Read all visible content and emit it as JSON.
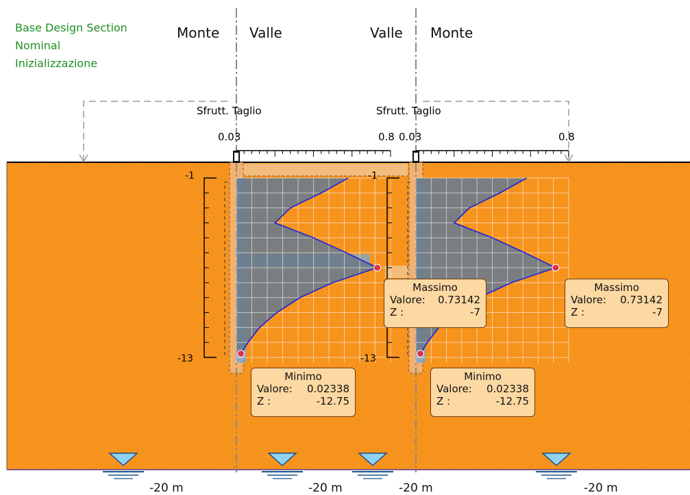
{
  "info": {
    "lines": [
      "Base Design Section",
      "Nominal",
      "Inizializzazione"
    ]
  },
  "left_wall": {
    "side_left": "Monte",
    "side_right": "Valle",
    "chart_title": "Sfrutt. Taglio",
    "scale_min": "0.03",
    "scale_max": "0.8",
    "depth_top": "-1",
    "depth_bottom": "-13",
    "max_box": {
      "title": "Massimo",
      "value_label": "Valore:",
      "value": "0.73142",
      "z_label": "Z :",
      "z": "-7"
    },
    "min_box": {
      "title": "Minimo",
      "value_label": "Valore:",
      "value": "0.02338",
      "z_label": "Z :",
      "z": "-12.75"
    }
  },
  "right_wall": {
    "side_left": "Valle",
    "side_right": "Monte",
    "chart_title": "Sfrutt. Taglio",
    "scale_min": "0.03",
    "scale_max": "0.8",
    "depth_top": "-1",
    "depth_bottom": "-13",
    "max_box": {
      "title": "Massimo",
      "value_label": "Valore:",
      "value": "0.73142",
      "z_label": "Z :",
      "z": "-7"
    },
    "min_box": {
      "title": "Minimo",
      "value_label": "Valore:",
      "value": "0.02338",
      "z_label": "Z :",
      "z": "-12.75"
    }
  },
  "water_tables": [
    "-20 m",
    "-20 m",
    "-20 m",
    "-20 m"
  ],
  "chart_data": {
    "type": "area",
    "ylim": [
      -13,
      -1
    ],
    "xlim": [
      0,
      0.8
    ],
    "series": [
      {
        "x": [
          0.58,
          0.44,
          0.28,
          0.2,
          0.4,
          0.57,
          0.73142,
          0.5,
          0.33,
          0.21,
          0.12,
          0.06,
          0.02338
        ],
        "y": [
          -1,
          -2,
          -3,
          -4,
          -5,
          -6,
          -7,
          -8,
          -9,
          -10,
          -11,
          -12,
          -12.75
        ]
      }
    ],
    "annotations": [
      {
        "label": "Massimo",
        "x": 0.73142,
        "y": -7
      },
      {
        "label": "Minimo",
        "x": 0.02338,
        "y": -12.75
      }
    ]
  },
  "colors": {
    "soil": "#F7941D",
    "soil_speckle": "#C96E0E",
    "wall": "#F3B477",
    "beam": "#F1C48E",
    "fill": "#6B7B8C",
    "curve": "#2A2ACF",
    "marker": "#E03050",
    "box_bg": "#FCD8A2",
    "box_border": "#6A3C14",
    "water": "#8FD3F4",
    "green": "#1F8F1F"
  }
}
